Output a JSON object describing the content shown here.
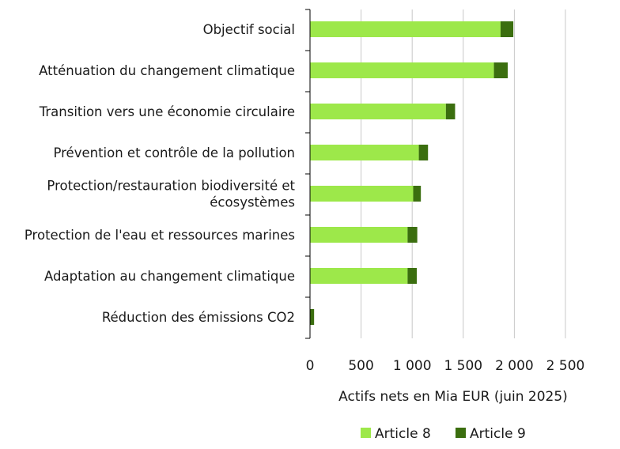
{
  "chart_data": {
    "type": "bar",
    "orientation": "horizontal",
    "stacked": true,
    "categories": [
      [
        "Objectif social"
      ],
      [
        "Atténuation du changement climatique"
      ],
      [
        "Transition vers une économie circulaire"
      ],
      [
        "Prévention et contrôle de la pollution"
      ],
      [
        "Protection/restauration biodiversité et",
        "écosystèmes"
      ],
      [
        "Protection de l'eau et ressources marines"
      ],
      [
        "Adaptation au changement climatique"
      ],
      [
        "Réduction des émissions CO2"
      ]
    ],
    "series": [
      {
        "name": "Article 8",
        "color": "#9de84a",
        "values": [
          1865,
          1800,
          1330,
          1065,
          1010,
          955,
          955,
          0
        ]
      },
      {
        "name": "Article 9",
        "color": "#3b6e0f",
        "values": [
          125,
          135,
          90,
          90,
          75,
          95,
          90,
          40
        ]
      }
    ],
    "xlabel": "Actifs nets en Mia EUR (juin 2025)",
    "xlim": [
      0,
      2500
    ],
    "xticks": [
      0,
      500,
      1000,
      1500,
      2000,
      2500
    ],
    "xtick_labels": [
      "0",
      "500",
      "1 000",
      "1 500",
      "2 000",
      "2 500"
    ],
    "grid": "vertical",
    "legend_position": "bottom"
  }
}
